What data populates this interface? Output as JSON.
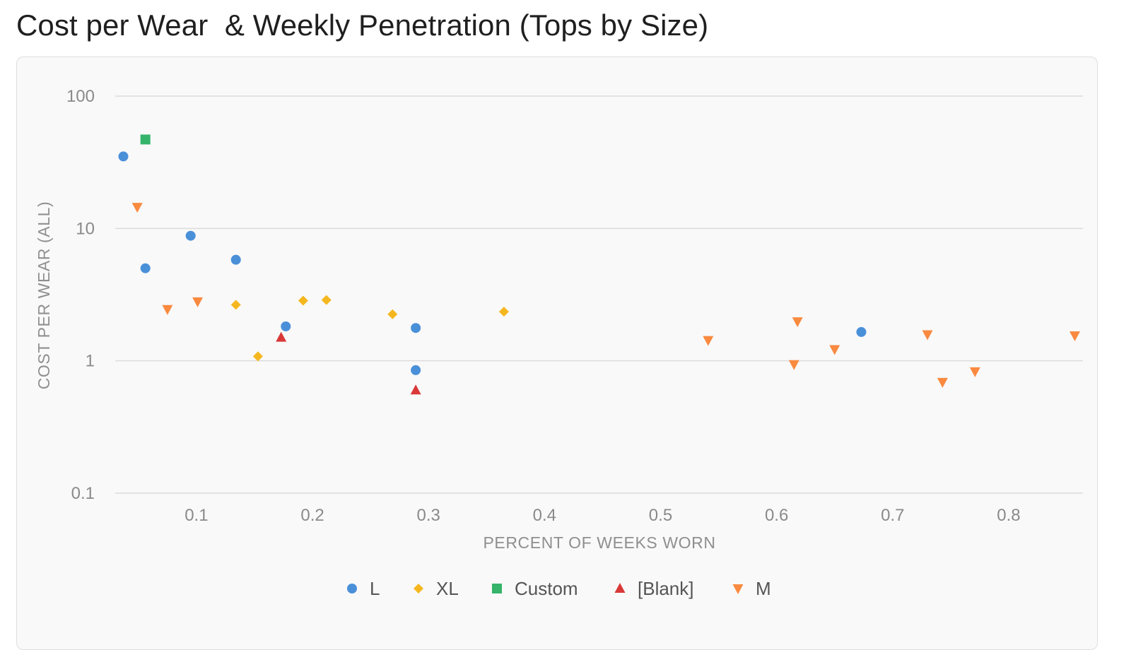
{
  "page": {
    "title": "Cost per Wear  & Weekly Penetration (Tops by Size)"
  },
  "chart_data": {
    "type": "scatter",
    "title": "Cost per Wear  & Weekly Penetration (Tops by Size)",
    "xlabel": "PERCENT OF WEEKS WORN",
    "ylabel": "COST PER WEAR (ALL)",
    "xlim": [
      0.03,
      0.864
    ],
    "ylim": [
      0.1,
      100
    ],
    "yscale": "log",
    "x_ticks": [
      "0.1",
      "0.2",
      "0.3",
      "0.4",
      "0.5",
      "0.6",
      "0.7",
      "0.8"
    ],
    "y_ticks": [
      "0.1",
      "1",
      "10",
      "100"
    ],
    "grid": true,
    "legend_position": "bottom-center",
    "series": [
      {
        "name": "L",
        "marker": "circle",
        "color": "#4a90d9",
        "points": [
          {
            "x": 0.037,
            "y": 35
          },
          {
            "x": 0.056,
            "y": 5.0
          },
          {
            "x": 0.095,
            "y": 8.8
          },
          {
            "x": 0.134,
            "y": 5.8
          },
          {
            "x": 0.177,
            "y": 1.82
          },
          {
            "x": 0.289,
            "y": 1.77
          },
          {
            "x": 0.289,
            "y": 0.85
          },
          {
            "x": 0.673,
            "y": 1.65
          }
        ]
      },
      {
        "name": "XL",
        "marker": "diamond",
        "color": "#f5b71f",
        "points": [
          {
            "x": 0.134,
            "y": 2.65
          },
          {
            "x": 0.153,
            "y": 1.08
          },
          {
            "x": 0.192,
            "y": 2.85
          },
          {
            "x": 0.212,
            "y": 2.88
          },
          {
            "x": 0.269,
            "y": 2.25
          },
          {
            "x": 0.365,
            "y": 2.35
          }
        ]
      },
      {
        "name": "Custom",
        "marker": "square",
        "color": "#35b46a",
        "points": [
          {
            "x": 0.056,
            "y": 47
          }
        ]
      },
      {
        "name": "[Blank]",
        "marker": "triangle-up",
        "color": "#d93838",
        "points": [
          {
            "x": 0.173,
            "y": 1.5
          },
          {
            "x": 0.289,
            "y": 0.6
          }
        ]
      },
      {
        "name": "M",
        "marker": "triangle-down",
        "color": "#f98a40",
        "points": [
          {
            "x": 0.049,
            "y": 14.5
          },
          {
            "x": 0.075,
            "y": 2.45
          },
          {
            "x": 0.101,
            "y": 2.8
          },
          {
            "x": 0.541,
            "y": 1.43
          },
          {
            "x": 0.615,
            "y": 0.94
          },
          {
            "x": 0.618,
            "y": 1.98
          },
          {
            "x": 0.65,
            "y": 1.22
          },
          {
            "x": 0.73,
            "y": 1.58
          },
          {
            "x": 0.743,
            "y": 0.69
          },
          {
            "x": 0.771,
            "y": 0.83
          },
          {
            "x": 0.857,
            "y": 1.55
          }
        ]
      }
    ]
  }
}
